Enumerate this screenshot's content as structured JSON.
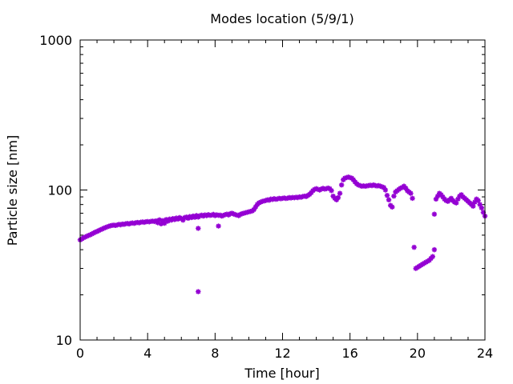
{
  "chart_data": {
    "type": "scatter",
    "title": "Modes location (5/9/1)",
    "xlabel": "Time [hour]",
    "ylabel": "Particle size [nm]",
    "xlim": [
      0,
      24
    ],
    "ylim": [
      10,
      1000
    ],
    "yscale": "log",
    "grid": false,
    "marker": "asterisk",
    "color": "#9400d3",
    "x_ticks": [
      0,
      4,
      8,
      12,
      16,
      20,
      24
    ],
    "x_tick_labels": [
      "0",
      "4",
      "8",
      "12",
      "16",
      "20",
      "24"
    ],
    "y_ticks": [
      10,
      100,
      1000
    ],
    "y_tick_labels": [
      "10",
      "100",
      "1000"
    ],
    "series": [
      {
        "points": [
          [
            0.0,
            46.5
          ],
          [
            0.1,
            47.2
          ],
          [
            0.2,
            48.0
          ],
          [
            0.3,
            48.6
          ],
          [
            0.4,
            49.2
          ],
          [
            0.5,
            49.8
          ],
          [
            0.6,
            50.3
          ],
          [
            0.7,
            51.0
          ],
          [
            0.8,
            51.7
          ],
          [
            0.9,
            52.4
          ],
          [
            1.0,
            52.9
          ],
          [
            1.1,
            53.6
          ],
          [
            1.2,
            54.3
          ],
          [
            1.3,
            54.9
          ],
          [
            1.4,
            55.6
          ],
          [
            1.5,
            56.2
          ],
          [
            1.6,
            56.8
          ],
          [
            1.7,
            57.3
          ],
          [
            1.8,
            57.8
          ],
          [
            1.9,
            58.1
          ],
          [
            2.0,
            58.3
          ],
          [
            2.1,
            58.0
          ],
          [
            2.2,
            58.5
          ],
          [
            2.3,
            59.0
          ],
          [
            2.4,
            58.6
          ],
          [
            2.5,
            59.3
          ],
          [
            2.6,
            59.0
          ],
          [
            2.7,
            59.6
          ],
          [
            2.8,
            59.8
          ],
          [
            2.9,
            59.4
          ],
          [
            3.0,
            60.0
          ],
          [
            3.1,
            60.3
          ],
          [
            3.2,
            59.9
          ],
          [
            3.3,
            60.5
          ],
          [
            3.4,
            60.8
          ],
          [
            3.5,
            60.4
          ],
          [
            3.6,
            61.0
          ],
          [
            3.7,
            61.2
          ],
          [
            3.8,
            60.9
          ],
          [
            3.9,
            61.4
          ],
          [
            4.0,
            61.6
          ],
          [
            4.1,
            61.3
          ],
          [
            4.2,
            61.8
          ],
          [
            4.3,
            62.0
          ],
          [
            4.4,
            61.6
          ],
          [
            4.5,
            62.3
          ],
          [
            4.6,
            60.5
          ],
          [
            4.7,
            63.2
          ],
          [
            4.8,
            59.5
          ],
          [
            4.9,
            62.5
          ],
          [
            5.0,
            60.0
          ],
          [
            5.1,
            63.5
          ],
          [
            5.2,
            62.0
          ],
          [
            5.3,
            64.0
          ],
          [
            5.4,
            63.0
          ],
          [
            5.5,
            64.5
          ],
          [
            5.6,
            63.5
          ],
          [
            5.7,
            65.0
          ],
          [
            5.8,
            64.0
          ],
          [
            5.9,
            65.5
          ],
          [
            6.0,
            64.5
          ],
          [
            6.1,
            63.0
          ],
          [
            6.2,
            65.5
          ],
          [
            6.3,
            66.0
          ],
          [
            6.4,
            64.8
          ],
          [
            6.5,
            66.5
          ],
          [
            6.6,
            65.5
          ],
          [
            6.7,
            67.0
          ],
          [
            6.8,
            65.8
          ],
          [
            6.9,
            67.5
          ],
          [
            7.0,
            66.0
          ],
          [
            7.1,
            67.3
          ],
          [
            7.2,
            68.0
          ],
          [
            7.3,
            67.0
          ],
          [
            7.4,
            68.2
          ],
          [
            7.5,
            67.5
          ],
          [
            7.6,
            68.5
          ],
          [
            7.7,
            67.8
          ],
          [
            7.8,
            68.0
          ],
          [
            7.9,
            68.8
          ],
          [
            8.0,
            67.5
          ],
          [
            8.1,
            68.3
          ],
          [
            8.2,
            67.8
          ],
          [
            8.3,
            68.0
          ],
          [
            8.4,
            67.0
          ],
          [
            8.5,
            67.8
          ],
          [
            8.6,
            68.5
          ],
          [
            8.7,
            69.0
          ],
          [
            8.8,
            68.2
          ],
          [
            8.9,
            69.5
          ],
          [
            9.0,
            70.0
          ],
          [
            9.1,
            69.2
          ],
          [
            9.2,
            68.5
          ],
          [
            9.3,
            68.0
          ],
          [
            9.4,
            67.5
          ],
          [
            9.5,
            68.8
          ],
          [
            9.6,
            69.5
          ],
          [
            9.7,
            70.0
          ],
          [
            9.8,
            70.5
          ],
          [
            9.9,
            71.0
          ],
          [
            10.0,
            71.5
          ],
          [
            10.1,
            72.0
          ],
          [
            10.2,
            72.5
          ],
          [
            10.3,
            74.0
          ],
          [
            10.4,
            77.0
          ],
          [
            10.5,
            80.0
          ],
          [
            10.6,
            82.0
          ],
          [
            10.7,
            83.0
          ],
          [
            10.8,
            84.0
          ],
          [
            10.9,
            84.5
          ],
          [
            11.0,
            85.0
          ],
          [
            11.1,
            86.0
          ],
          [
            11.2,
            85.5
          ],
          [
            11.3,
            87.0
          ],
          [
            11.4,
            86.5
          ],
          [
            11.5,
            87.5
          ],
          [
            11.6,
            86.8
          ],
          [
            11.7,
            87.2
          ],
          [
            11.8,
            88.0
          ],
          [
            11.9,
            87.5
          ],
          [
            12.0,
            88.0
          ],
          [
            12.1,
            88.5
          ],
          [
            12.2,
            87.8
          ],
          [
            12.3,
            88.2
          ],
          [
            12.4,
            89.0
          ],
          [
            12.5,
            88.5
          ],
          [
            12.6,
            89.2
          ],
          [
            12.7,
            88.8
          ],
          [
            12.8,
            89.5
          ],
          [
            12.9,
            89.0
          ],
          [
            13.0,
            90.0
          ],
          [
            13.1,
            89.5
          ],
          [
            13.2,
            90.5
          ],
          [
            13.3,
            91.0
          ],
          [
            13.4,
            90.5
          ],
          [
            13.5,
            92.0
          ],
          [
            13.6,
            93.5
          ],
          [
            13.7,
            96.0
          ],
          [
            13.8,
            99.0
          ],
          [
            13.9,
            101.0
          ],
          [
            14.0,
            102.0
          ],
          [
            14.1,
            101.0
          ],
          [
            14.2,
            100.0
          ],
          [
            14.3,
            101.5
          ],
          [
            14.4,
            102.5
          ],
          [
            14.5,
            101.5
          ],
          [
            14.6,
            102.0
          ],
          [
            14.7,
            103.0
          ],
          [
            14.8,
            102.0
          ],
          [
            14.9,
            99.0
          ],
          [
            15.0,
            91.0
          ],
          [
            15.1,
            88.0
          ],
          [
            15.2,
            86.0
          ],
          [
            15.3,
            89.0
          ],
          [
            15.4,
            95.0
          ],
          [
            15.5,
            108.0
          ],
          [
            15.6,
            117.0
          ],
          [
            15.7,
            120.0
          ],
          [
            15.8,
            121.0
          ],
          [
            15.9,
            122.0
          ],
          [
            16.0,
            121.0
          ],
          [
            16.1,
            120.0
          ],
          [
            16.2,
            117.0
          ],
          [
            16.3,
            113.0
          ],
          [
            16.4,
            110.0
          ],
          [
            16.5,
            108.0
          ],
          [
            16.6,
            107.0
          ],
          [
            16.7,
            106.0
          ],
          [
            16.8,
            106.5
          ],
          [
            16.9,
            106.0
          ],
          [
            17.0,
            106.5
          ],
          [
            17.1,
            107.0
          ],
          [
            17.2,
            107.5
          ],
          [
            17.3,
            107.0
          ],
          [
            17.4,
            108.0
          ],
          [
            17.5,
            107.0
          ],
          [
            17.6,
            106.5
          ],
          [
            17.7,
            107.0
          ],
          [
            17.8,
            106.0
          ],
          [
            17.9,
            105.0
          ],
          [
            18.0,
            104.0
          ],
          [
            18.1,
            100.0
          ],
          [
            18.2,
            92.0
          ],
          [
            18.3,
            86.0
          ],
          [
            18.4,
            79.0
          ],
          [
            18.5,
            77.0
          ],
          [
            18.6,
            91.0
          ],
          [
            18.7,
            97.0
          ],
          [
            18.8,
            99.0
          ],
          [
            18.9,
            101.0
          ],
          [
            19.0,
            103.0
          ],
          [
            19.1,
            104.0
          ],
          [
            19.2,
            106.0
          ],
          [
            19.3,
            103.0
          ],
          [
            19.4,
            99.0
          ],
          [
            19.5,
            97.0
          ],
          [
            19.6,
            95.0
          ],
          [
            19.7,
            88.0
          ],
          [
            19.8,
            41.5
          ],
          [
            19.9,
            30.0
          ],
          [
            20.0,
            30.5
          ],
          [
            20.1,
            31.0
          ],
          [
            20.2,
            31.5
          ],
          [
            20.3,
            32.0
          ],
          [
            20.4,
            32.5
          ],
          [
            20.5,
            33.0
          ],
          [
            20.6,
            33.5
          ],
          [
            20.7,
            34.0
          ],
          [
            20.8,
            35.0
          ],
          [
            20.9,
            36.0
          ],
          [
            21.0,
            40.0
          ],
          [
            21.0,
            69.0
          ],
          [
            21.1,
            87.0
          ],
          [
            21.2,
            91.0
          ],
          [
            21.3,
            95.0
          ],
          [
            21.4,
            93.0
          ],
          [
            21.5,
            90.0
          ],
          [
            21.6,
            87.0
          ],
          [
            21.7,
            85.0
          ],
          [
            21.8,
            84.0
          ],
          [
            21.9,
            86.0
          ],
          [
            22.0,
            88.0
          ],
          [
            22.1,
            85.0
          ],
          [
            22.2,
            83.0
          ],
          [
            22.3,
            82.0
          ],
          [
            22.4,
            87.0
          ],
          [
            22.5,
            91.0
          ],
          [
            22.6,
            93.0
          ],
          [
            22.7,
            90.0
          ],
          [
            22.8,
            88.0
          ],
          [
            22.9,
            86.0
          ],
          [
            23.0,
            84.0
          ],
          [
            23.1,
            82.0
          ],
          [
            23.2,
            80.0
          ],
          [
            23.3,
            78.0
          ],
          [
            23.4,
            83.0
          ],
          [
            23.5,
            87.0
          ],
          [
            23.6,
            85.0
          ],
          [
            23.7,
            80.0
          ],
          [
            23.8,
            76.0
          ],
          [
            23.9,
            71.0
          ],
          [
            24.0,
            67.0
          ],
          [
            7.0,
            21.0
          ],
          [
            7.0,
            55.5
          ],
          [
            8.2,
            57.5
          ]
        ]
      }
    ]
  }
}
